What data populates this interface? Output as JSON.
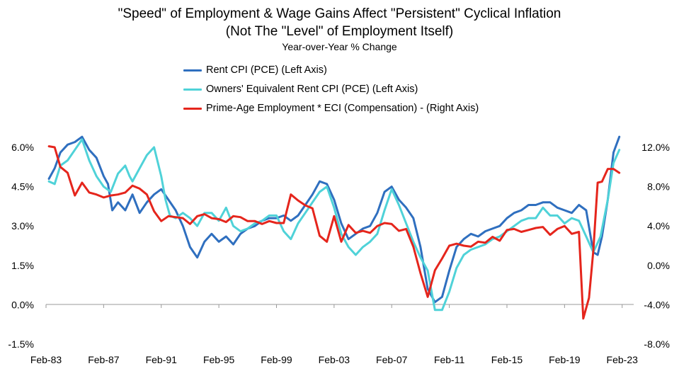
{
  "chart_data": {
    "type": "line",
    "title": "\"Speed\" of Employment & Wage Gains Affect \"Persistent\" Cyclical Inflation",
    "subtitle": "(Not The \"Level\" of Employment Itself)",
    "note": "Year-over-Year % Change",
    "x_tick_labels": [
      "Feb-83",
      "Feb-87",
      "Feb-91",
      "Feb-95",
      "Feb-99",
      "Feb-03",
      "Feb-07",
      "Feb-11",
      "Feb-15",
      "Feb-19",
      "Feb-23"
    ],
    "x_range": [
      1983.0,
      2023.8
    ],
    "left_axis": {
      "range": [
        -1.5,
        6.0
      ],
      "ticks": [
        -1.5,
        0.0,
        1.5,
        3.0,
        4.5,
        6.0
      ],
      "tick_labels": [
        "-1.5%",
        "0.0%",
        "1.5%",
        "3.0%",
        "4.5%",
        "6.0%"
      ]
    },
    "right_axis": {
      "range": [
        -8.0,
        12.0
      ],
      "ticks": [
        -8,
        -4,
        0,
        4,
        8,
        12
      ],
      "tick_labels": [
        "-8.0%",
        "-4.0%",
        "0.0%",
        "4.0%",
        "8.0%",
        "12.0%"
      ]
    },
    "series": [
      {
        "name": "Rent CPI (PCE) (Left Axis)",
        "axis": "left",
        "color": "#2f6fbf",
        "x": [
          1983.2,
          1983.6,
          1984.0,
          1984.5,
          1985.0,
          1985.5,
          1986.0,
          1986.5,
          1987.0,
          1987.3,
          1987.6,
          1988.0,
          1988.5,
          1989.0,
          1989.5,
          1990.0,
          1990.5,
          1991.0,
          1991.5,
          1992.0,
          1992.5,
          1993.0,
          1993.5,
          1994.0,
          1994.5,
          1995.0,
          1995.5,
          1996.0,
          1996.5,
          1997.0,
          1997.5,
          1998.0,
          1998.5,
          1999.0,
          1999.5,
          2000.0,
          2000.5,
          2001.0,
          2001.5,
          2002.0,
          2002.5,
          2003.0,
          2003.5,
          2004.0,
          2004.5,
          2005.0,
          2005.5,
          2006.0,
          2006.5,
          2007.0,
          2007.5,
          2008.0,
          2008.5,
          2009.0,
          2009.5,
          2010.0,
          2010.5,
          2011.0,
          2011.5,
          2012.0,
          2012.5,
          2013.0,
          2013.5,
          2014.0,
          2014.5,
          2015.0,
          2015.5,
          2016.0,
          2016.5,
          2017.0,
          2017.5,
          2018.0,
          2018.5,
          2019.0,
          2019.5,
          2020.0,
          2020.5,
          2021.0,
          2021.3,
          2021.6,
          2022.0,
          2022.4,
          2022.8
        ],
        "values": [
          4.8,
          5.2,
          5.8,
          6.1,
          6.2,
          6.4,
          5.9,
          5.6,
          4.9,
          4.6,
          3.6,
          3.9,
          3.6,
          4.2,
          3.5,
          3.9,
          4.2,
          4.4,
          4.0,
          3.6,
          3.0,
          2.2,
          1.8,
          2.4,
          2.7,
          2.4,
          2.6,
          2.3,
          2.7,
          2.9,
          3.0,
          3.2,
          3.3,
          3.3,
          3.4,
          3.2,
          3.4,
          3.8,
          4.2,
          4.7,
          4.6,
          4.0,
          3.1,
          2.5,
          2.7,
          2.9,
          3.0,
          3.5,
          4.3,
          4.5,
          4.0,
          3.7,
          3.3,
          2.2,
          0.6,
          0.1,
          0.3,
          1.3,
          2.2,
          2.5,
          2.7,
          2.6,
          2.8,
          2.9,
          3.0,
          3.3,
          3.5,
          3.6,
          3.8,
          3.8,
          3.9,
          3.9,
          3.7,
          3.6,
          3.5,
          3.8,
          3.6,
          2.0,
          1.9,
          2.6,
          4.0,
          5.8,
          6.4
        ]
      },
      {
        "name": "Owners' Equivalent Rent CPI (PCE) (Left Axis)",
        "axis": "left",
        "color": "#4fd2d8",
        "x": [
          1983.2,
          1983.6,
          1984.0,
          1984.5,
          1985.0,
          1985.5,
          1986.0,
          1986.5,
          1987.0,
          1987.5,
          1988.0,
          1988.5,
          1988.8,
          1989.0,
          1989.5,
          1990.0,
          1990.5,
          1991.0,
          1991.3,
          1991.6,
          1992.0,
          1992.5,
          1993.0,
          1993.5,
          1994.0,
          1994.5,
          1995.0,
          1995.5,
          1996.0,
          1996.5,
          1997.0,
          1997.5,
          1998.0,
          1998.5,
          1999.0,
          1999.5,
          2000.0,
          2000.5,
          2001.0,
          2001.5,
          2002.0,
          2002.5,
          2003.0,
          2003.5,
          2004.0,
          2004.5,
          2005.0,
          2005.5,
          2006.0,
          2006.5,
          2007.0,
          2007.5,
          2008.0,
          2008.5,
          2009.0,
          2009.5,
          2010.0,
          2010.5,
          2011.0,
          2011.5,
          2012.0,
          2012.5,
          2013.0,
          2013.5,
          2014.0,
          2014.5,
          2015.0,
          2015.5,
          2016.0,
          2016.5,
          2017.0,
          2017.5,
          2018.0,
          2018.5,
          2019.0,
          2019.5,
          2020.0,
          2020.5,
          2021.0,
          2021.5,
          2022.0,
          2022.4,
          2022.8
        ],
        "values": [
          4.7,
          4.6,
          5.3,
          5.5,
          5.9,
          6.3,
          5.5,
          4.9,
          4.5,
          4.3,
          5.0,
          5.3,
          4.9,
          4.7,
          5.2,
          5.7,
          6.0,
          4.9,
          4.0,
          3.4,
          3.3,
          3.5,
          3.3,
          3.0,
          3.5,
          3.5,
          3.2,
          3.7,
          3.0,
          2.8,
          2.9,
          3.1,
          3.2,
          3.4,
          3.4,
          2.8,
          2.5,
          3.1,
          3.5,
          3.9,
          4.3,
          4.5,
          3.7,
          2.7,
          2.2,
          1.9,
          2.2,
          2.4,
          2.7,
          3.6,
          4.4,
          3.8,
          3.1,
          2.4,
          1.8,
          1.3,
          -0.2,
          -0.2,
          0.5,
          1.4,
          1.9,
          2.1,
          2.2,
          2.3,
          2.5,
          2.6,
          2.8,
          3.0,
          3.2,
          3.3,
          3.3,
          3.7,
          3.4,
          3.4,
          3.1,
          3.3,
          3.2,
          2.6,
          2.0,
          2.6,
          4.0,
          5.4,
          5.9
        ]
      },
      {
        "name": "Prime-Age Employment * ECI (Compensation) - (Right Axis)",
        "axis": "right",
        "color": "#e5251c",
        "x": [
          1983.2,
          1983.6,
          1984.0,
          1984.5,
          1985.0,
          1985.5,
          1986.0,
          1986.5,
          1987.0,
          1987.5,
          1988.0,
          1988.5,
          1989.0,
          1989.5,
          1990.0,
          1990.5,
          1991.0,
          1991.5,
          1992.0,
          1992.5,
          1993.0,
          1993.5,
          1994.0,
          1994.5,
          1995.0,
          1995.5,
          1996.0,
          1996.5,
          1997.0,
          1997.5,
          1998.0,
          1998.5,
          1999.0,
          1999.5,
          2000.0,
          2000.5,
          2001.0,
          2001.5,
          2002.0,
          2002.5,
          2003.0,
          2003.5,
          2004.0,
          2004.5,
          2005.0,
          2005.5,
          2006.0,
          2006.5,
          2007.0,
          2007.5,
          2008.0,
          2008.5,
          2009.0,
          2009.5,
          2010.0,
          2010.5,
          2011.0,
          2011.5,
          2012.0,
          2012.5,
          2013.0,
          2013.5,
          2014.0,
          2014.5,
          2015.0,
          2015.5,
          2016.0,
          2016.5,
          2017.0,
          2017.5,
          2018.0,
          2018.5,
          2019.0,
          2019.5,
          2020.0,
          2020.3,
          2020.7,
          2021.0,
          2021.3,
          2021.6,
          2022.0,
          2022.4,
          2022.8
        ],
        "values": [
          12.1,
          12.0,
          10.0,
          9.4,
          7.1,
          8.4,
          7.4,
          7.2,
          6.9,
          7.1,
          7.2,
          7.4,
          8.1,
          7.8,
          7.2,
          5.5,
          4.5,
          5.0,
          4.9,
          4.8,
          4.2,
          5.0,
          5.2,
          4.8,
          4.7,
          4.4,
          5.0,
          4.9,
          4.5,
          4.5,
          4.2,
          4.5,
          4.3,
          4.3,
          7.2,
          6.6,
          6.1,
          5.8,
          3.0,
          2.4,
          5.0,
          2.4,
          4.1,
          3.3,
          3.5,
          3.3,
          4.0,
          4.3,
          4.2,
          3.5,
          3.7,
          1.9,
          -0.8,
          -3.2,
          -0.5,
          0.7,
          2.0,
          2.2,
          2.0,
          1.9,
          2.4,
          2.3,
          2.9,
          2.5,
          3.6,
          3.7,
          3.4,
          3.6,
          3.8,
          3.9,
          3.1,
          3.7,
          4.0,
          3.2,
          3.4,
          -5.4,
          -3.3,
          1.5,
          8.4,
          8.5,
          9.8,
          9.8,
          9.4
        ]
      }
    ]
  }
}
